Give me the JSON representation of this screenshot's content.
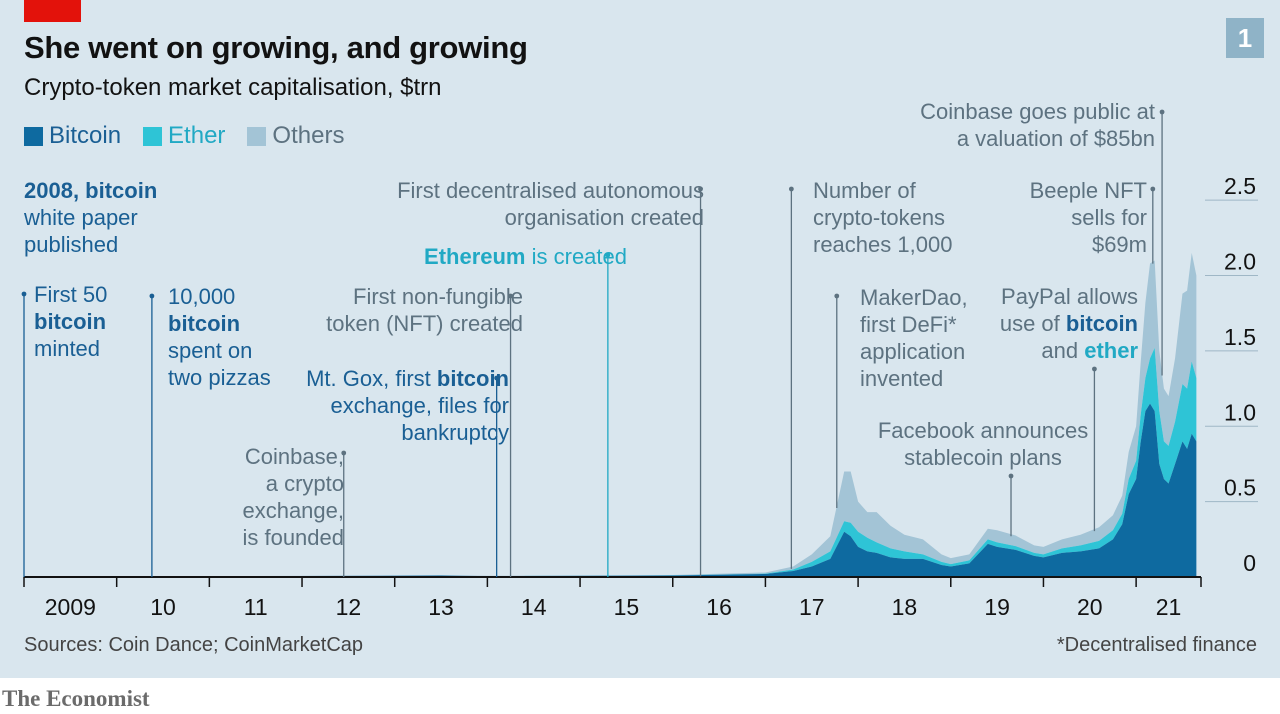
{
  "header": {
    "title": "She went on growing, and growing",
    "subtitle": "Crypto-token market capitalisation, $trn",
    "badge": "1"
  },
  "footer": {
    "source": "Sources: Coin Dance; CoinMarketCap",
    "footnote": "*Decentralised finance",
    "brand": "The Economist"
  },
  "colors": {
    "bitcoin": "#0e6aa0",
    "ether": "#2ec4d6",
    "others": "#a3c4d6",
    "text_bitcoin": "#1a5f94",
    "text_ether": "#21a9c4",
    "text_grey": "#5d7280"
  },
  "chart_data": {
    "type": "area",
    "stacked": true,
    "title": "She went on growing, and growing",
    "subtitle": "Crypto-token market capitalisation, $trn",
    "ylim": [
      0,
      2.7
    ],
    "yticks": [
      "0",
      "0.5",
      "1.0",
      "1.5",
      "2.0",
      "2.5"
    ],
    "ytick_values": [
      0,
      0.5,
      1.0,
      1.5,
      2.0,
      2.5
    ],
    "xlim": [
      2009.0,
      2021.7
    ],
    "xticks": [
      "2009",
      "10",
      "11",
      "12",
      "13",
      "14",
      "15",
      "16",
      "17",
      "18",
      "19",
      "20",
      "21"
    ],
    "legend": {
      "placement": "top-left",
      "entries": [
        "Bitcoin",
        "Ether",
        "Others"
      ]
    },
    "x": [
      2009.0,
      2013.5,
      2014.0,
      2016.0,
      2017.0,
      2017.3,
      2017.5,
      2017.7,
      2017.85,
      2017.92,
      2018.0,
      2018.1,
      2018.2,
      2018.35,
      2018.5,
      2018.7,
      2018.9,
      2019.0,
      2019.2,
      2019.4,
      2019.5,
      2019.7,
      2019.9,
      2020.0,
      2020.2,
      2020.4,
      2020.6,
      2020.75,
      2020.85,
      2020.92,
      2021.0,
      2021.05,
      2021.1,
      2021.15,
      2021.2,
      2021.25,
      2021.3,
      2021.35,
      2021.42,
      2021.5,
      2021.55,
      2021.6,
      2021.65
    ],
    "series": [
      {
        "name": "Bitcoin",
        "values": [
          0.0,
          0.01,
          0.006,
          0.01,
          0.02,
          0.04,
          0.07,
          0.12,
          0.3,
          0.27,
          0.2,
          0.17,
          0.16,
          0.13,
          0.12,
          0.12,
          0.08,
          0.07,
          0.09,
          0.22,
          0.2,
          0.18,
          0.14,
          0.13,
          0.16,
          0.17,
          0.19,
          0.25,
          0.35,
          0.55,
          0.65,
          0.9,
          1.1,
          1.15,
          1.1,
          0.75,
          0.65,
          0.62,
          0.75,
          0.9,
          0.85,
          0.95,
          0.9
        ]
      },
      {
        "name": "Ether",
        "values": [
          0.0,
          0.0,
          0.0,
          0.001,
          0.002,
          0.01,
          0.03,
          0.05,
          0.07,
          0.09,
          0.1,
          0.09,
          0.07,
          0.06,
          0.05,
          0.03,
          0.02,
          0.015,
          0.02,
          0.03,
          0.03,
          0.025,
          0.02,
          0.02,
          0.03,
          0.04,
          0.05,
          0.06,
          0.07,
          0.1,
          0.12,
          0.18,
          0.22,
          0.3,
          0.42,
          0.35,
          0.25,
          0.25,
          0.28,
          0.38,
          0.4,
          0.48,
          0.42
        ]
      },
      {
        "name": "Others",
        "values": [
          0.0,
          0.002,
          0.002,
          0.002,
          0.008,
          0.02,
          0.05,
          0.1,
          0.33,
          0.34,
          0.2,
          0.17,
          0.2,
          0.15,
          0.11,
          0.1,
          0.05,
          0.04,
          0.04,
          0.07,
          0.08,
          0.07,
          0.05,
          0.05,
          0.06,
          0.07,
          0.09,
          0.1,
          0.12,
          0.18,
          0.23,
          0.35,
          0.5,
          0.63,
          0.58,
          0.4,
          0.35,
          0.33,
          0.42,
          0.6,
          0.65,
          0.72,
          0.68
        ]
      }
    ],
    "annotations": [
      {
        "id": "bitcoin-whitepaper",
        "x": 2008.95,
        "lines": [
          "2008, bitcoin",
          "white paper",
          "published"
        ],
        "style": "bitcoin-bold",
        "align": "left",
        "no_line": true
      },
      {
        "id": "first-50-bitcoin",
        "x": 2009.0,
        "lines": [
          "First 50",
          "bitcoin",
          "minted"
        ],
        "style": "bitcoin",
        "align": "left"
      },
      {
        "id": "pizzas",
        "x": 2010.38,
        "lines": [
          "10,000",
          "bitcoin",
          "spent on",
          "two pizzas"
        ],
        "style": "bitcoin",
        "align": "left"
      },
      {
        "id": "coinbase-founded",
        "x": 2012.45,
        "lines": [
          "Coinbase,",
          "a crypto",
          "exchange,",
          "is founded"
        ],
        "style": "grey",
        "align": "right"
      },
      {
        "id": "mt-gox",
        "x": 2014.1,
        "lines": [
          "Mt. Gox, first bitcoin",
          "exchange, files for",
          "bankruptcy"
        ],
        "style": "bitcoin",
        "align": "right"
      },
      {
        "id": "first-nft",
        "x": 2014.25,
        "lines": [
          "First non-fungible",
          "token (NFT) created"
        ],
        "style": "grey",
        "align": "right"
      },
      {
        "id": "ethereum-created",
        "x": 2015.3,
        "lines": [
          "Ethereum is created"
        ],
        "style": "ether",
        "align": "right"
      },
      {
        "id": "first-dao",
        "x": 2016.3,
        "lines": [
          "First decentralised autonomous",
          "organisation created"
        ],
        "style": "grey",
        "align": "right"
      },
      {
        "id": "crypto-tokens-1000",
        "x": 2017.28,
        "lines": [
          "Number of",
          "crypto-tokens",
          "reaches 1,000"
        ],
        "style": "grey",
        "align": "left"
      },
      {
        "id": "makerdao",
        "x": 2017.77,
        "lines": [
          "MakerDao,",
          "first DeFi*",
          "application",
          "invented"
        ],
        "style": "grey",
        "align": "left"
      },
      {
        "id": "facebook-stablecoin",
        "x": 2019.65,
        "lines": [
          "Facebook announces",
          "stablecoin plans"
        ],
        "style": "grey",
        "align": "center"
      },
      {
        "id": "paypal",
        "x": 2020.55,
        "lines": [
          "PayPal allows",
          "use of bitcoin",
          "and ether"
        ],
        "style": "grey",
        "align": "right"
      },
      {
        "id": "beeple-nft",
        "x": 2021.18,
        "lines": [
          "Beeple NFT",
          "sells for",
          "$69m"
        ],
        "style": "grey",
        "align": "right"
      },
      {
        "id": "coinbase-public",
        "x": 2021.28,
        "lines": [
          "Coinbase goes public at",
          "a valuation of $85bn"
        ],
        "style": "grey",
        "align": "right"
      }
    ]
  }
}
